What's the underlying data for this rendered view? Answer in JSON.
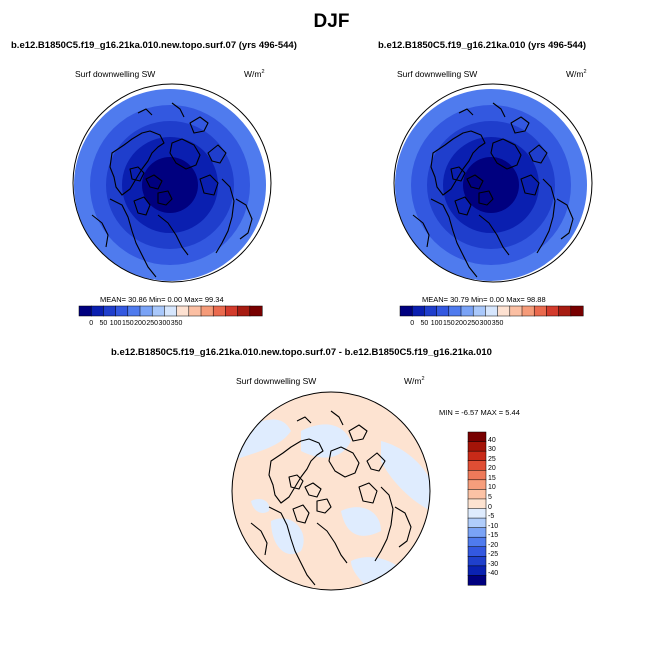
{
  "page": {
    "title": "DJF"
  },
  "colors": {
    "abs_levels": [
      "#00007f",
      "#0a1fb0",
      "#1f3ecc",
      "#3358e0",
      "#4f7bee",
      "#7aa3f6",
      "#a9c8fb",
      "#d6e6fd",
      "#fde1d1",
      "#fbbfa3",
      "#f59b79",
      "#ea6a4e",
      "#d33b2c",
      "#a71c12",
      "#780000"
    ],
    "diff_levels": [
      "#00007f",
      "#0a22b2",
      "#1f40cc",
      "#3358e0",
      "#4f7bee",
      "#7aa3f6",
      "#b0cdfb",
      "#dfecfe",
      "#fde3d1",
      "#fbc2a5",
      "#f69e7c",
      "#ee7a5a",
      "#e04e34",
      "#c82a18",
      "#a41408",
      "#780000"
    ]
  },
  "chart_data": [
    {
      "type": "heatmap",
      "projection": "polar-stereographic",
      "title": "b.e12.B1850C5.f19_g16.21ka.010.new.topo.surf.07 (yrs 496-544)",
      "variable": "Surf downwelling SW",
      "units": "W/m",
      "units_sup": "2",
      "stats_text": "MEAN=  30.86  Min=   0.00  Max=  99.34",
      "mean": 30.86,
      "min": 0.0,
      "max": 99.34,
      "colorbar_ticks": [
        "0",
        "50",
        "100",
        "150",
        "200",
        "250",
        "300",
        "350"
      ],
      "colorbar_levels": [
        0,
        50,
        100,
        150,
        200,
        250,
        300,
        350
      ],
      "rings": [
        {
          "value": 95,
          "color_index": 4
        },
        {
          "value": 75,
          "color_index": 3
        },
        {
          "value": 55,
          "color_index": 2
        },
        {
          "value": 35,
          "color_index": 1
        },
        {
          "value": 10,
          "color_index": 0
        }
      ]
    },
    {
      "type": "heatmap",
      "projection": "polar-stereographic",
      "title": "b.e12.B1850C5.f19_g16.21ka.010 (yrs 496-544)",
      "variable": "Surf downwelling SW",
      "units": "W/m",
      "units_sup": "2",
      "stats_text": "MEAN=  30.79  Min=   0.00  Max=  98.88",
      "mean": 30.79,
      "min": 0.0,
      "max": 98.88,
      "colorbar_ticks": [
        "0",
        "50",
        "100",
        "150",
        "200",
        "250",
        "300",
        "350"
      ],
      "colorbar_levels": [
        0,
        50,
        100,
        150,
        200,
        250,
        300,
        350
      ],
      "rings": [
        {
          "value": 95,
          "color_index": 4
        },
        {
          "value": 75,
          "color_index": 3
        },
        {
          "value": 55,
          "color_index": 2
        },
        {
          "value": 35,
          "color_index": 1
        },
        {
          "value": 10,
          "color_index": 0
        }
      ]
    },
    {
      "type": "heatmap",
      "projection": "polar-stereographic",
      "title": "b.e12.B1850C5.f19_g16.21ka.010.new.topo.surf.07 - b.e12.B1850C5.f19_g16.21ka.010",
      "variable": "Surf downwelling SW",
      "units": "W/m",
      "units_sup": "2",
      "stats_text": "MIN =  -6.57 MAX =   5.44",
      "min": -6.57,
      "max": 5.44,
      "colorbar_ticks": [
        "40",
        "30",
        "25",
        "20",
        "15",
        "10",
        "5",
        "0",
        "-5",
        "-10",
        "-15",
        "-20",
        "-25",
        "-30",
        "-40"
      ],
      "colorbar_levels": [
        40,
        30,
        25,
        20,
        15,
        10,
        5,
        0,
        -5,
        -10,
        -15,
        -20,
        -25,
        -30,
        -40
      ]
    }
  ]
}
